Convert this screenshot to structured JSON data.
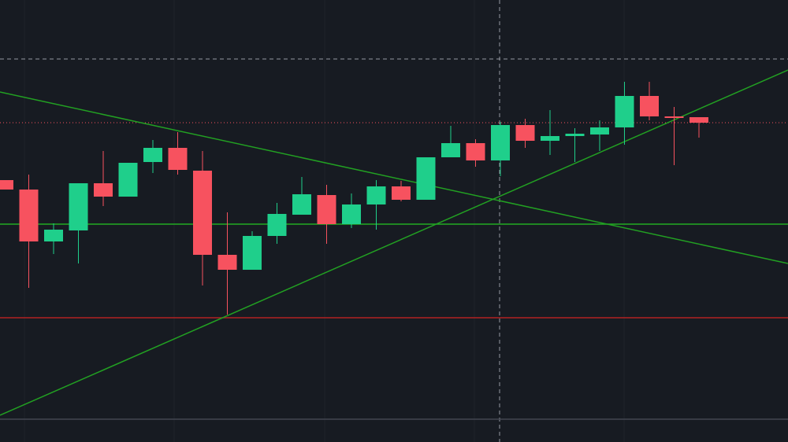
{
  "chart_data": {
    "type": "candlestick",
    "categories": [
      null,
      null,
      null,
      null,
      null,
      null,
      null,
      null,
      null,
      null,
      null,
      null,
      null,
      null,
      null,
      null,
      null,
      null,
      null,
      null,
      null,
      null,
      null,
      null,
      null,
      null,
      null,
      null,
      null
    ],
    "open": [
      333,
      321,
      255,
      269,
      329,
      312,
      356,
      374,
      345,
      238,
      219,
      262,
      289,
      314,
      277,
      302,
      325,
      308,
      362,
      380,
      358,
      403,
      383,
      389,
      391,
      400,
      440,
      414,
      413
    ],
    "high": [
      333,
      340,
      278,
      329,
      370,
      355,
      384,
      394,
      370,
      292,
      268,
      304,
      337,
      327,
      316,
      333,
      332,
      362,
      402,
      385,
      407,
      411,
      422,
      399,
      409,
      458,
      458,
      426,
      413
    ],
    "low": [
      321,
      196,
      239,
      227,
      300,
      312,
      342,
      340,
      199,
      162,
      219,
      252,
      289,
      252,
      272,
      270,
      306,
      308,
      362,
      350,
      338,
      374,
      365,
      356,
      370,
      378,
      409,
      352,
      387
    ],
    "close": [
      321,
      255,
      270,
      329,
      312,
      355,
      374,
      346,
      238,
      219,
      262,
      290,
      315,
      277,
      302,
      325,
      308,
      362,
      380,
      358,
      403,
      383,
      389,
      392,
      400,
      440,
      414,
      412,
      406
    ],
    "up_color": "#1fcf8b",
    "down_color": "#f7525f",
    "ylim": [
      0,
      562
    ]
  }
}
